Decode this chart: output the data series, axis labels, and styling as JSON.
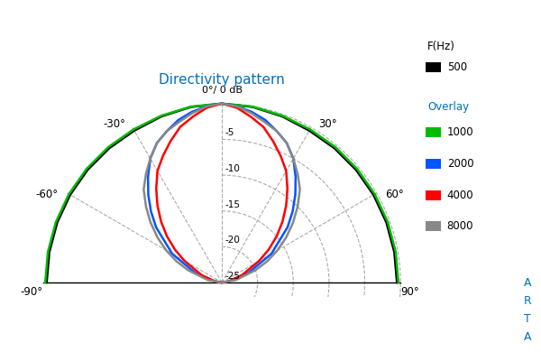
{
  "title": "Directivity pattern",
  "title_color": "#0070C0",
  "bg_color": "#ffffff",
  "grid_color": "#aaaaaa",
  "radii_values": [
    0,
    -5,
    -10,
    -15,
    -20,
    -25
  ],
  "angle_ticks": [
    -90,
    -60,
    -30,
    0,
    30,
    60,
    90
  ],
  "legend_title1": "F(Hz)",
  "legend_entries": [
    {
      "label": "500",
      "color": "#000000",
      "lw": 1.8
    },
    {
      "label": "1000",
      "color": "#00bb00",
      "lw": 1.8
    },
    {
      "label": "2000",
      "color": "#0055ff",
      "lw": 1.8
    },
    {
      "label": "4000",
      "color": "#ff0000",
      "lw": 1.8
    },
    {
      "label": "8000",
      "color": "#888888",
      "lw": 1.8
    }
  ],
  "arta_color": "#0070C0",
  "overlay_color": "#0070C0",
  "curves": {
    "500": {
      "angles": [
        -90,
        -80,
        -70,
        -60,
        -50,
        -40,
        -30,
        -20,
        -10,
        0,
        10,
        20,
        30,
        40,
        50,
        60,
        70,
        80,
        90
      ],
      "db": [
        -0.5,
        -0.5,
        -0.5,
        -0.5,
        -0.5,
        -0.5,
        -0.5,
        -0.3,
        -0.1,
        0,
        -0.1,
        -0.3,
        -0.5,
        -0.5,
        -0.5,
        -0.5,
        -0.5,
        -0.5,
        -0.5
      ]
    },
    "1000": {
      "angles": [
        -90,
        -80,
        -70,
        -60,
        -50,
        -40,
        -30,
        -20,
        -10,
        0,
        10,
        20,
        30,
        40,
        50,
        60,
        70,
        80,
        90
      ],
      "db": [
        -0.3,
        -0.3,
        -0.3,
        -0.3,
        -0.3,
        -0.3,
        -0.3,
        -0.2,
        -0.05,
        0,
        -0.05,
        -0.2,
        -0.3,
        -0.3,
        -0.3,
        -0.3,
        -0.3,
        -0.3,
        -0.3
      ]
    },
    "2000": {
      "angles": [
        -90,
        -80,
        -70,
        -60,
        -50,
        -45,
        -40,
        -35,
        -30,
        -25,
        -20,
        -15,
        -10,
        -5,
        0,
        5,
        10,
        15,
        20,
        25,
        30,
        35,
        40,
        45,
        50,
        60,
        70,
        80,
        90
      ],
      "db": [
        -25,
        -24,
        -21,
        -17,
        -13,
        -11,
        -9,
        -7,
        -5,
        -3.5,
        -2.5,
        -1.5,
        -0.8,
        -0.3,
        0,
        -0.3,
        -0.8,
        -1.5,
        -2.5,
        -3.5,
        -5,
        -7,
        -9,
        -11,
        -13,
        -17,
        -21,
        -24,
        -25
      ]
    },
    "4000": {
      "angles": [
        -90,
        -80,
        -70,
        -60,
        -55,
        -50,
        -45,
        -40,
        -35,
        -30,
        -25,
        -20,
        -15,
        -10,
        -5,
        0,
        5,
        10,
        15,
        20,
        25,
        30,
        35,
        40,
        45,
        50,
        55,
        60,
        70,
        80,
        90
      ],
      "db": [
        -25,
        -24,
        -22,
        -19,
        -17,
        -15,
        -13,
        -11,
        -9,
        -7,
        -5.5,
        -4,
        -2.5,
        -1.5,
        -0.5,
        0,
        -0.5,
        -1.5,
        -2.5,
        -4,
        -5.5,
        -7,
        -9,
        -11,
        -13,
        -15,
        -17,
        -19,
        -22,
        -24,
        -25
      ]
    },
    "8000": {
      "angles": [
        -90,
        -80,
        -70,
        -65,
        -60,
        -55,
        -50,
        -45,
        -40,
        -35,
        -30,
        -25,
        -20,
        -15,
        -10,
        -5,
        0,
        5,
        10,
        15,
        20,
        25,
        30,
        35,
        40,
        45,
        50,
        55,
        60,
        65,
        70,
        80,
        90
      ],
      "db": [
        -25,
        -23,
        -20,
        -18,
        -16,
        -14,
        -12,
        -10,
        -8,
        -6.5,
        -5,
        -3.5,
        -2.5,
        -1.8,
        -1,
        -0.3,
        0,
        -0.3,
        -1,
        -1.8,
        -2.5,
        -3.5,
        -5,
        -6.5,
        -8,
        -10,
        -12,
        -14,
        -16,
        -18,
        -20,
        -23,
        -25
      ]
    }
  }
}
